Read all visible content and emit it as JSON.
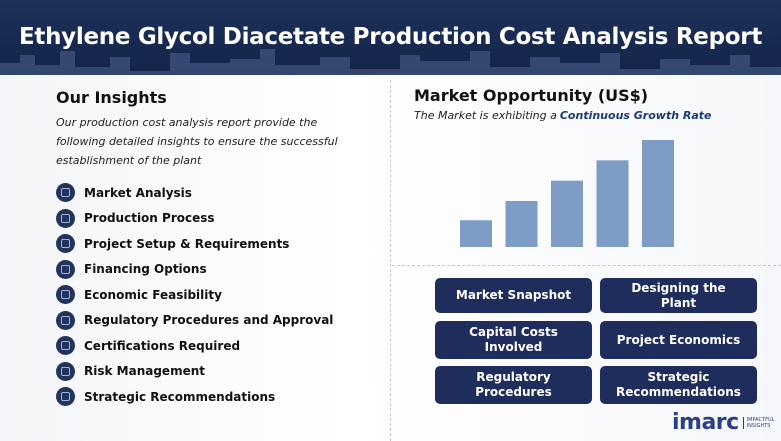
{
  "header": {
    "title": "Ethylene Glycol Diacetate Production Cost Analysis Report"
  },
  "insights": {
    "title": "Our Insights",
    "description": "Our production cost analysis report provide the following detailed insights to ensure the successful establishment of the plant",
    "items": [
      "Market Analysis",
      "Production Process",
      "Project Setup & Requirements",
      "Financing Options",
      "Economic Feasibility",
      "Regulatory Procedures and Approval",
      "Certifications Required",
      "Risk Management",
      "Strategic Recommendations"
    ]
  },
  "market": {
    "title": "Market Opportunity (US$)",
    "subtitle": "The Market is exhibiting a",
    "subtitle_highlight": "Continuous Growth Rate"
  },
  "chart_data": {
    "type": "bar",
    "categories": [
      null,
      null,
      null,
      null,
      null
    ],
    "values": [
      25,
      43,
      62,
      81,
      100
    ],
    "color": "#7d9dc7",
    "ylim": [
      0,
      100
    ],
    "grid": false
  },
  "buttons": [
    "Market Snapshot",
    "Designing the Plant",
    "Capital Costs Involved",
    "Project Economics",
    "Regulatory Procedures",
    "Strategic Recommendations"
  ],
  "logo": {
    "name": "imarc",
    "tagline": "IMPACTFUL INSIGHTS"
  }
}
